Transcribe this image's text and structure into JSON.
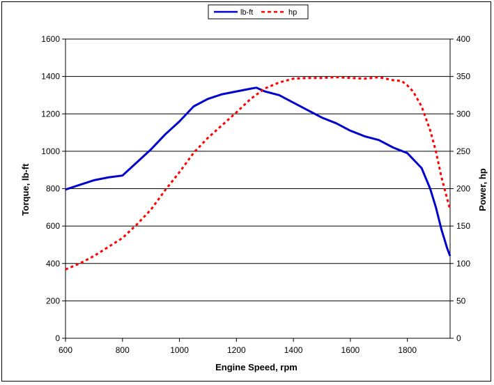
{
  "chart_data": {
    "type": "line",
    "title": "",
    "xlabel": "Engine Speed, rpm",
    "ylabel": "Torque, lb-ft",
    "y2label": "Power, hp",
    "xlim": [
      600,
      1950
    ],
    "ylim": [
      0,
      1600
    ],
    "y2lim": [
      0,
      400
    ],
    "x_ticks": [
      600,
      800,
      1000,
      1200,
      1400,
      1600,
      1800
    ],
    "y_ticks": [
      0,
      200,
      400,
      600,
      800,
      1000,
      1200,
      1400,
      1600
    ],
    "y2_ticks": [
      0,
      50,
      100,
      150,
      200,
      250,
      300,
      350,
      400
    ],
    "grid": "horizontal",
    "legend_position": "top-center",
    "series": [
      {
        "name": "lb-ft",
        "axis": "left",
        "color": "#0000cc",
        "style": "solid",
        "x": [
          600,
          650,
          700,
          750,
          800,
          850,
          900,
          950,
          1000,
          1050,
          1100,
          1150,
          1200,
          1250,
          1270,
          1300,
          1350,
          1400,
          1450,
          1500,
          1550,
          1600,
          1650,
          1700,
          1750,
          1800,
          1850,
          1880,
          1900,
          1920,
          1940,
          1950
        ],
        "values": [
          795,
          820,
          845,
          860,
          870,
          940,
          1010,
          1090,
          1160,
          1240,
          1280,
          1305,
          1320,
          1335,
          1340,
          1320,
          1300,
          1260,
          1220,
          1180,
          1150,
          1110,
          1080,
          1060,
          1020,
          990,
          910,
          800,
          700,
          580,
          480,
          440
        ]
      },
      {
        "name": "hp",
        "axis": "right",
        "color": "#ff0000",
        "style": "dashed",
        "x": [
          600,
          650,
          700,
          750,
          800,
          850,
          900,
          950,
          1000,
          1050,
          1100,
          1150,
          1200,
          1250,
          1300,
          1350,
          1400,
          1450,
          1500,
          1550,
          1600,
          1650,
          1700,
          1750,
          1780,
          1800,
          1820,
          1850,
          1880,
          1900,
          1920,
          1950
        ],
        "values": [
          92,
          100,
          110,
          122,
          134,
          152,
          172,
          198,
          222,
          248,
          268,
          285,
          302,
          320,
          334,
          342,
          347,
          348,
          348,
          349,
          348,
          347,
          349,
          345,
          344,
          338,
          330,
          310,
          278,
          250,
          215,
          172
        ]
      }
    ]
  }
}
